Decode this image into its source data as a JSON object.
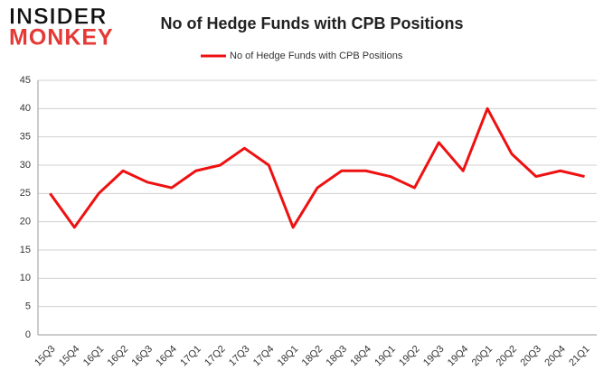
{
  "logo": {
    "line1": "INSIDER",
    "line2": "MONKEY"
  },
  "chart_data": {
    "type": "line",
    "title": "No of Hedge Funds with CPB Positions",
    "categories": [
      "15Q3",
      "15Q4",
      "16Q1",
      "16Q2",
      "16Q3",
      "16Q4",
      "17Q1",
      "17Q2",
      "17Q3",
      "17Q4",
      "18Q1",
      "18Q2",
      "18Q3",
      "18Q4",
      "19Q1",
      "19Q2",
      "19Q3",
      "19Q4",
      "20Q1",
      "20Q2",
      "20Q3",
      "20Q4",
      "21Q1"
    ],
    "series": [
      {
        "name": "No of Hedge Funds with CPB Positions",
        "color": "#ee1111",
        "values": [
          25,
          19,
          25,
          29,
          27,
          26,
          29,
          30,
          33,
          30,
          19,
          26,
          29,
          29,
          28,
          26,
          34,
          29,
          40,
          32,
          28,
          29,
          28
        ]
      }
    ],
    "ylim": [
      0,
      45
    ],
    "yticks": [
      0,
      5,
      10,
      15,
      20,
      25,
      30,
      35,
      40,
      45
    ],
    "grid": true,
    "legend": "top"
  }
}
